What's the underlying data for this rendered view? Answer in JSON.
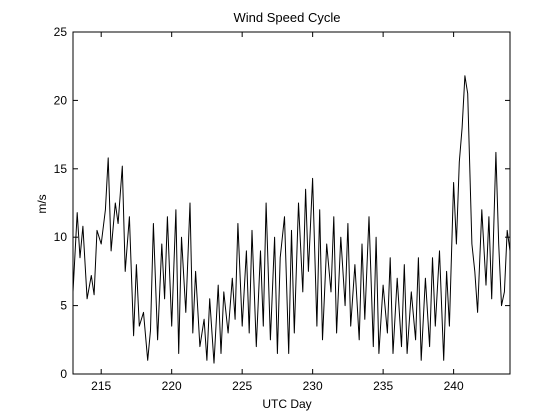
{
  "chart_data": {
    "type": "line",
    "title": "Wind Speed Cycle",
    "xlabel": "UTC Day",
    "ylabel": "m/s",
    "xlim": [
      213,
      244
    ],
    "ylim": [
      0,
      25
    ],
    "xticks": [
      215,
      220,
      225,
      230,
      235,
      240
    ],
    "yticks": [
      0,
      5,
      10,
      15,
      20,
      25
    ],
    "grid": false,
    "series": [
      {
        "name": "",
        "color": "#000000",
        "x": [
          213.0,
          213.3,
          213.5,
          213.7,
          214.0,
          214.3,
          214.5,
          214.7,
          215.0,
          215.3,
          215.5,
          215.7,
          216.0,
          216.2,
          216.5,
          216.7,
          217.0,
          217.3,
          217.5,
          217.7,
          218.0,
          218.3,
          218.5,
          218.7,
          219.0,
          219.3,
          219.5,
          219.7,
          220.0,
          220.3,
          220.5,
          220.7,
          221.0,
          221.3,
          221.5,
          221.7,
          222.0,
          222.3,
          222.5,
          222.7,
          223.0,
          223.3,
          223.5,
          223.7,
          224.0,
          224.3,
          224.5,
          224.7,
          225.0,
          225.3,
          225.5,
          225.7,
          226.0,
          226.3,
          226.5,
          226.7,
          227.0,
          227.3,
          227.5,
          227.7,
          228.0,
          228.3,
          228.5,
          228.7,
          229.0,
          229.3,
          229.5,
          229.7,
          230.0,
          230.3,
          230.5,
          230.7,
          231.0,
          231.3,
          231.5,
          231.7,
          232.0,
          232.3,
          232.5,
          232.7,
          233.0,
          233.3,
          233.5,
          233.7,
          234.0,
          234.3,
          234.5,
          234.7,
          235.0,
          235.3,
          235.5,
          235.7,
          236.0,
          236.3,
          236.5,
          236.7,
          237.0,
          237.3,
          237.5,
          237.7,
          238.0,
          238.3,
          238.5,
          238.7,
          239.0,
          239.3,
          239.5,
          239.7,
          240.0,
          240.2,
          240.4,
          240.6,
          240.8,
          241.0,
          241.3,
          241.5,
          241.7,
          242.0,
          242.3,
          242.5,
          242.7,
          243.0,
          243.2,
          243.4,
          243.6,
          243.8,
          244.0
        ],
        "y": [
          6.0,
          11.8,
          8.5,
          10.8,
          5.5,
          7.2,
          5.8,
          10.5,
          9.5,
          12.0,
          15.8,
          9.0,
          12.5,
          11.0,
          15.2,
          7.5,
          11.5,
          2.8,
          8.0,
          3.5,
          4.5,
          1.0,
          3.2,
          11.0,
          2.5,
          9.5,
          5.5,
          11.5,
          3.5,
          12.0,
          1.5,
          10.0,
          4.5,
          12.5,
          3.0,
          7.5,
          2.0,
          4.0,
          1.0,
          5.5,
          0.8,
          6.5,
          1.5,
          6.0,
          3.0,
          7.0,
          4.0,
          11.0,
          3.5,
          9.0,
          3.0,
          10.5,
          2.0,
          9.0,
          3.5,
          12.5,
          2.5,
          10.0,
          1.5,
          8.5,
          11.5,
          1.5,
          10.5,
          3.0,
          12.5,
          6.0,
          13.5,
          7.5,
          14.3,
          3.5,
          12.0,
          2.5,
          9.5,
          6.0,
          11.5,
          3.0,
          10.0,
          5.0,
          11.0,
          3.5,
          8.0,
          2.5,
          9.5,
          4.0,
          11.5,
          2.0,
          10.0,
          1.5,
          6.5,
          3.0,
          8.5,
          1.5,
          7.0,
          2.0,
          8.0,
          1.5,
          6.0,
          2.5,
          8.5,
          1.0,
          7.0,
          2.0,
          8.5,
          3.5,
          9.0,
          1.0,
          7.5,
          3.5,
          14.0,
          9.5,
          15.5,
          18.0,
          21.8,
          20.5,
          9.5,
          7.5,
          4.5,
          12.0,
          6.5,
          11.5,
          5.5,
          16.2,
          9.5,
          5.0,
          6.0,
          10.5,
          9.0
        ]
      }
    ]
  }
}
